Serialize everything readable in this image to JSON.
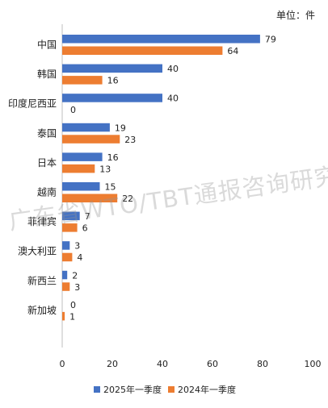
{
  "unit_label": "单位：件",
  "watermark": "广东省WTO/TBT通报咨询研究中心",
  "chart_data": {
    "type": "bar",
    "orientation": "horizontal",
    "categories": [
      "中国",
      "韩国",
      "印度尼西亚",
      "泰国",
      "日本",
      "越南",
      "菲律宾",
      "澳大利亚",
      "新西兰",
      "新加坡"
    ],
    "series": [
      {
        "name": "2025年一季度",
        "color": "#4472C4",
        "values": [
          79,
          40,
          40,
          19,
          16,
          15,
          7,
          3,
          2,
          0
        ]
      },
      {
        "name": "2024年一季度",
        "color": "#ED7D31",
        "values": [
          64,
          16,
          0,
          23,
          13,
          22,
          6,
          4,
          3,
          1
        ]
      }
    ],
    "xlim": [
      0,
      100
    ],
    "xticks": [
      0,
      20,
      40,
      60,
      80,
      100
    ],
    "grid": false,
    "legend_position": "bottom"
  }
}
